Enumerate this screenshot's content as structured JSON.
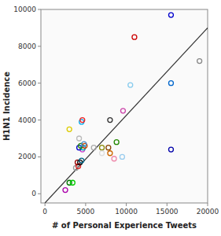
{
  "chart_data": {
    "type": "scatter",
    "xlabel": "# of Personal Experience Tweets",
    "ylabel": "H1N1 Incidence",
    "xlim": [
      -500,
      20000
    ],
    "ylim": [
      -500,
      10000
    ],
    "xticks": [
      0,
      5000,
      10000,
      15000,
      20000
    ],
    "yticks": [
      0,
      2000,
      4000,
      6000,
      8000,
      10000
    ],
    "grid": false,
    "series": [
      {
        "type": "scatter",
        "marker": "open-circle",
        "x": [
          2500,
          3000,
          3400,
          3000,
          3800,
          4100,
          4000,
          4300,
          4500,
          4600,
          4200,
          4700,
          4400,
          4900,
          4800,
          4200,
          4500,
          4600,
          6000,
          7000,
          7800,
          8000,
          7000,
          8000,
          8500,
          9500,
          9600,
          10500,
          11000,
          15500,
          15500,
          15500,
          19000,
          8800
        ],
        "values": [
          200,
          600,
          600,
          3500,
          1400,
          1500,
          1700,
          1700,
          1800,
          2400,
          2500,
          2500,
          2600,
          2600,
          2700,
          3000,
          3900,
          4000,
          2500,
          2500,
          2500,
          4000,
          2200,
          2200,
          1900,
          2000,
          4500,
          5900,
          8500,
          9700,
          6000,
          2400,
          7200,
          2800
        ],
        "colors": [
          "#aa00aa",
          "#007700",
          "#00cc00",
          "#ddcc00",
          "#999999",
          "#dd2222",
          "#990000",
          "#111111",
          "#006688",
          "#cc44cc",
          "#0000cc",
          "#00aaaa",
          "#228800",
          "#cc4400",
          "#4488cc",
          "#bbbbbb",
          "#00aaee",
          "#ee2222",
          "#aaaaaa",
          "#888800",
          "#884400",
          "#333333",
          "#dddddd",
          "#cc6600",
          "#ee88aa",
          "#99ccee",
          "#cc44aa",
          "#88ccee",
          "#cc0000",
          "#0000cc",
          "#0066cc",
          "#0000aa",
          "#888888",
          "#228800"
        ]
      },
      {
        "type": "line",
        "line_style": "solid",
        "color": "#333333",
        "x": [
          0,
          20000
        ],
        "values": [
          -500,
          9000
        ]
      }
    ]
  }
}
